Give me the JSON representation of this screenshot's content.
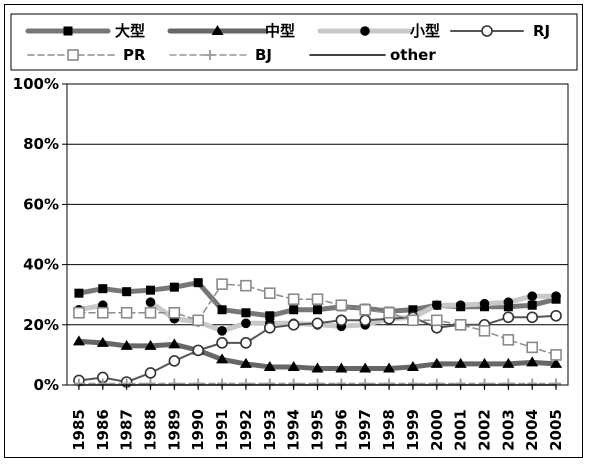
{
  "chart_data": {
    "type": "line",
    "title": "",
    "xlabel": "",
    "ylabel": "",
    "categories": [
      "1985",
      "1986",
      "1987",
      "1988",
      "1989",
      "1990",
      "1991",
      "1992",
      "1993",
      "1994",
      "1995",
      "1996",
      "1997",
      "1998",
      "1999",
      "2000",
      "2001",
      "2002",
      "2003",
      "2004",
      "2005"
    ],
    "ylim": [
      0,
      100
    ],
    "y_ticks": [
      "0%",
      "20%",
      "40%",
      "60%",
      "80%",
      "100%"
    ],
    "legend_placement": "top",
    "series": [
      {
        "name": "大型",
        "color": "#777777",
        "marker": "filled-square",
        "line": "thick-dark-gray",
        "values": [
          30.5,
          32.0,
          31.0,
          31.5,
          32.5,
          34.0,
          25.0,
          24.0,
          23.0,
          25.0,
          25.0,
          26.0,
          25.5,
          24.5,
          25.0,
          26.5,
          26.0,
          26.0,
          26.0,
          26.5,
          28.5
        ]
      },
      {
        "name": "中型",
        "color": "#666666",
        "marker": "filled-triangle",
        "line": "thick-dark-gray",
        "values": [
          14.5,
          14.0,
          13.0,
          13.0,
          13.5,
          11.5,
          8.5,
          7.0,
          6.0,
          6.0,
          5.5,
          5.5,
          5.5,
          5.5,
          6.0,
          7.0,
          7.0,
          7.0,
          7.0,
          7.5,
          7.0
        ]
      },
      {
        "name": "小型",
        "color": "#c8c8c8",
        "marker": "filled-circle",
        "line": "thick-light-gray",
        "values": [
          25.0,
          26.5,
          null,
          27.5,
          22.0,
          21.0,
          18.0,
          20.5,
          20.5,
          20.5,
          20.0,
          19.5,
          20.0,
          22.0,
          22.5,
          26.5,
          26.5,
          27.0,
          27.5,
          29.5,
          29.5
        ]
      },
      {
        "name": "RJ",
        "color": "#555555",
        "marker": "open-circle",
        "line": "thin-dark-gray",
        "values": [
          1.5,
          2.5,
          1.0,
          4.0,
          8.0,
          11.5,
          14.0,
          14.0,
          19.0,
          20.0,
          20.5,
          21.5,
          21.5,
          22.0,
          22.5,
          19.0,
          20.0,
          20.0,
          22.5,
          22.5,
          23.0
        ]
      },
      {
        "name": "PR",
        "color": "#8c8c8c",
        "marker": "open-square",
        "line": "dashed-gray",
        "values": [
          24.0,
          24.0,
          24.0,
          24.0,
          24.0,
          21.5,
          33.5,
          33.0,
          30.5,
          28.5,
          28.5,
          26.5,
          25.0,
          24.0,
          21.5,
          21.5,
          20.0,
          18.0,
          15.0,
          12.5,
          10.0
        ]
      },
      {
        "name": "BJ",
        "color": "#999999",
        "marker": "plus",
        "line": "dashed-gray",
        "values": [
          0.5,
          0.5,
          0.5,
          0.5,
          0.5,
          0.5,
          0.5,
          0.5,
          0.5,
          0.5,
          0.5,
          0.5,
          0.5,
          0.5,
          0.5,
          0.5,
          0.5,
          0.5,
          0.5,
          0.5,
          0.5
        ]
      },
      {
        "name": "other",
        "color": "#000000",
        "marker": "none",
        "line": "thin-black",
        "values": [
          0.0,
          0.0,
          0.0,
          0.0,
          0.0,
          0.0,
          0.0,
          0.0,
          0.0,
          0.0,
          0.0,
          0.0,
          0.0,
          0.0,
          0.0,
          0.0,
          0.0,
          0.0,
          0.0,
          0.0,
          0.0
        ]
      }
    ]
  }
}
